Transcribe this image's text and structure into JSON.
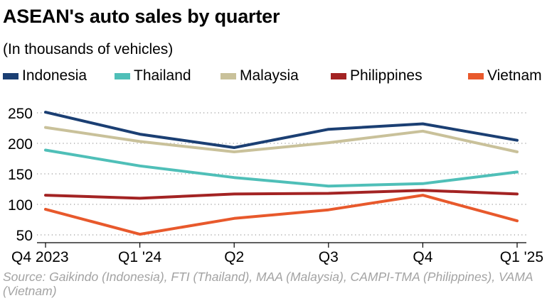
{
  "title": "ASEAN's auto sales by quarter",
  "subtitle": "(In thousands of vehicles)",
  "source": "Source: Gaikindo (Indonesia), FTI (Thailand), MAA (Malaysia), CAMPI-TMA (Philippines), VAMA (Vietnam)",
  "chart_data": {
    "type": "line",
    "categories": [
      "Q4 2023",
      "Q1 '24",
      "Q2",
      "Q3",
      "Q4",
      "Q1 '25"
    ],
    "ylim": [
      40,
      260
    ],
    "yticks": [
      50,
      100,
      150,
      200,
      250
    ],
    "grid": "horizontal-dotted",
    "legend": "top",
    "series": [
      {
        "name": "Indonesia",
        "color": "#1b3f73",
        "values": [
          251,
          215,
          193,
          223,
          232,
          205
        ]
      },
      {
        "name": "Thailand",
        "color": "#4fbfb8",
        "values": [
          189,
          163,
          144,
          130,
          134,
          153
        ]
      },
      {
        "name": "Malaysia",
        "color": "#c9c19a",
        "values": [
          226,
          203,
          186,
          201,
          220,
          186
        ]
      },
      {
        "name": "Philippines",
        "color": "#a32323",
        "values": [
          115,
          110,
          117,
          118,
          123,
          117
        ]
      },
      {
        "name": "Vietnam",
        "color": "#e8592c",
        "values": [
          92,
          51,
          77,
          91,
          115,
          73
        ]
      }
    ]
  }
}
